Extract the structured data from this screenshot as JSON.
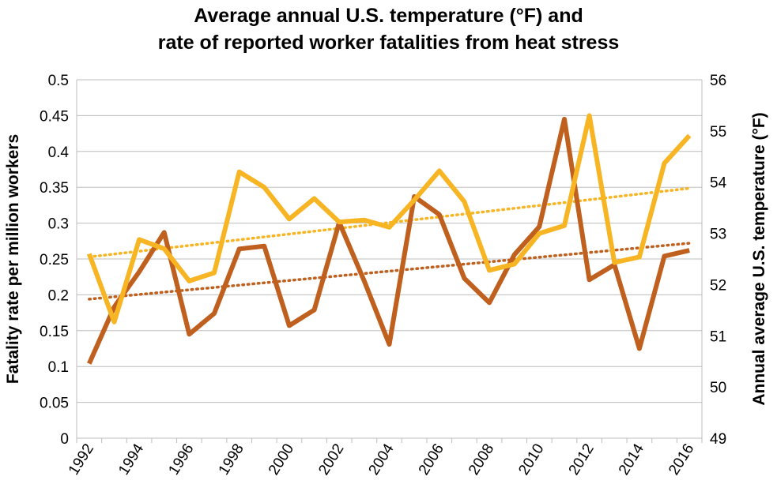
{
  "chart_data": {
    "type": "line",
    "title": "Average annual U.S. temperature (°F) and",
    "subtitle": "rate of reported worker fatalities from heat stress",
    "ylabel_left": "Fatality rate per million workers",
    "ylabel_right": "Annual average U.S. temperature (°F)",
    "x": [
      1992,
      1993,
      1994,
      1995,
      1996,
      1997,
      1998,
      1999,
      2000,
      2001,
      2002,
      2003,
      2004,
      2005,
      2006,
      2007,
      2008,
      2009,
      2010,
      2011,
      2012,
      2013,
      2014,
      2015,
      2016
    ],
    "x_tick_labels": [
      "1992",
      "1994",
      "1996",
      "1998",
      "2000",
      "2002",
      "2004",
      "2006",
      "2008",
      "2010",
      "2012",
      "2014",
      "2016"
    ],
    "ylim_left": [
      0,
      0.5
    ],
    "y_ticks_left": [
      "0",
      "0.05",
      "0.1",
      "0.15",
      "0.2",
      "0.25",
      "0.3",
      "0.35",
      "0.4",
      "0.45",
      "0.5"
    ],
    "ylim_right": [
      49,
      56
    ],
    "y_ticks_right": [
      "49",
      "50",
      "51",
      "52",
      "53",
      "54",
      "55",
      "56"
    ],
    "grid": true,
    "series": [
      {
        "axis": "left",
        "color": "#C0601F",
        "values": [
          0.104,
          0.183,
          0.232,
          0.287,
          0.145,
          0.174,
          0.264,
          0.268,
          0.157,
          0.179,
          0.301,
          0.219,
          0.131,
          0.337,
          0.312,
          0.223,
          0.189,
          0.256,
          0.295,
          0.445,
          0.221,
          0.242,
          0.125,
          0.254,
          0.262
        ],
        "trend": [
          0.194,
          0.272
        ]
      },
      {
        "axis": "right",
        "color": "#F7B423",
        "values": [
          52.6,
          51.27,
          52.88,
          52.7,
          52.07,
          52.23,
          54.2,
          53.9,
          53.28,
          53.68,
          53.22,
          53.26,
          53.12,
          53.65,
          54.22,
          53.62,
          52.28,
          52.4,
          53.0,
          53.15,
          55.3,
          52.43,
          52.54,
          54.37,
          54.91
        ],
        "trend": [
          52.54,
          53.88
        ]
      }
    ]
  }
}
